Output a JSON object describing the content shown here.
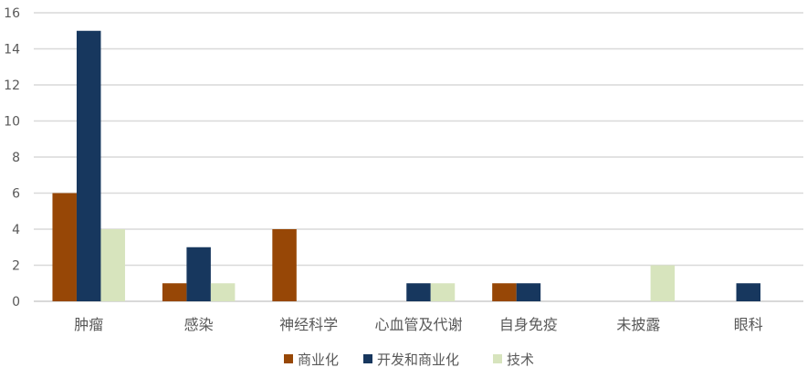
{
  "chart_data": {
    "type": "bar",
    "categories": [
      "肿瘤",
      "感染",
      "神经科学",
      "心血管及代谢",
      "自身免疫",
      "未披露",
      "眼科"
    ],
    "series": [
      {
        "name": "商业化",
        "color": "#974706",
        "values": [
          6,
          1,
          4,
          0,
          1,
          0,
          0
        ]
      },
      {
        "name": "开发和商业化",
        "color": "#17375E",
        "values": [
          15,
          3,
          0,
          1,
          1,
          0,
          1
        ]
      },
      {
        "name": "技术",
        "color": "#D7E4BD",
        "values": [
          4,
          1,
          0,
          1,
          0,
          2,
          0
        ]
      }
    ],
    "yticks": [
      0,
      2,
      4,
      6,
      8,
      10,
      12,
      14,
      16
    ],
    "ylim": [
      0,
      16
    ],
    "grid": true,
    "legend": "bottom",
    "gridline_color": "#D9D9D9"
  }
}
